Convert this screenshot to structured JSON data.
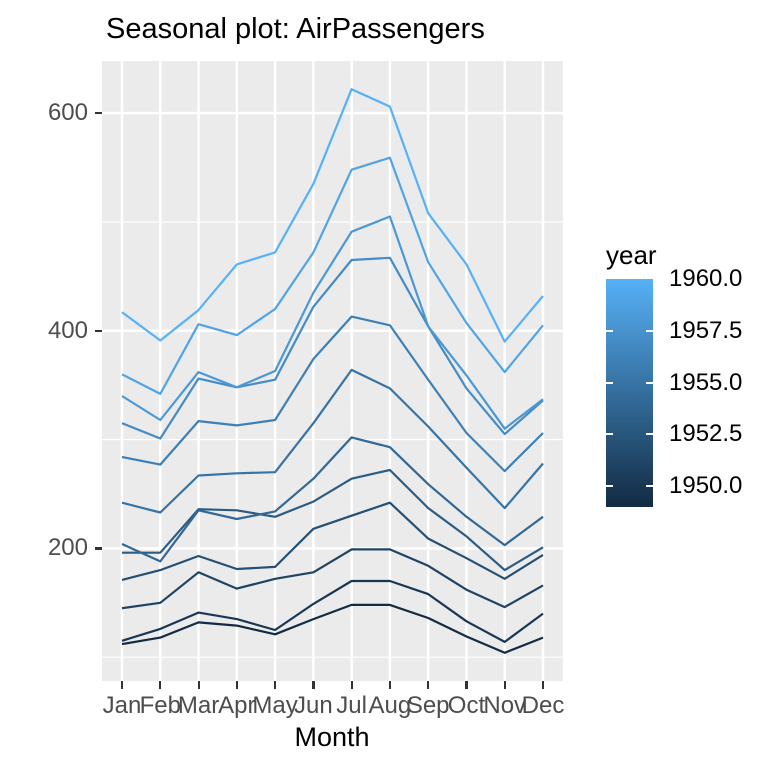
{
  "chart_data": {
    "type": "line",
    "title": "Seasonal plot: AirPassengers",
    "xlabel": "Month",
    "ylabel": "",
    "categories": [
      "Jan",
      "Feb",
      "Mar",
      "Apr",
      "May",
      "Jun",
      "Jul",
      "Aug",
      "Sep",
      "Oct",
      "Nov",
      "Dec"
    ],
    "ylim": [
      78.1,
      647.9
    ],
    "y_ticks": [
      {
        "value": 200,
        "label": "200"
      },
      {
        "value": 400,
        "label": "400"
      },
      {
        "value": 600,
        "label": "600"
      }
    ],
    "y_minor": [
      100,
      300,
      500
    ],
    "grid": "on",
    "legend_position": "right",
    "legend": {
      "title": "year",
      "range": [
        1949,
        1960
      ],
      "low_color": "#132B43",
      "high_color": "#56B1F7",
      "labels": [
        {
          "text": "1960.0",
          "value": 1960.0
        },
        {
          "text": "1957.5",
          "value": 1957.5
        },
        {
          "text": "1955.0",
          "value": 1955.0
        },
        {
          "text": "1952.5",
          "value": 1952.5
        },
        {
          "text": "1950.0",
          "value": 1950.0
        }
      ],
      "tick_values": [
        1957.5,
        1955.0,
        1952.5,
        1950.0
      ]
    },
    "series": [
      {
        "name": "1949",
        "year": 1949,
        "color": "#132B43",
        "values": [
          112,
          118,
          132,
          129,
          121,
          135,
          148,
          148,
          136,
          119,
          104,
          118
        ]
      },
      {
        "name": "1950",
        "year": 1950,
        "color": "#193753",
        "values": [
          115,
          126,
          141,
          135,
          125,
          149,
          170,
          170,
          158,
          133,
          114,
          140
        ]
      },
      {
        "name": "1951",
        "year": 1951,
        "color": "#1F4364",
        "values": [
          145,
          150,
          178,
          163,
          172,
          178,
          199,
          199,
          184,
          162,
          146,
          166
        ]
      },
      {
        "name": "1952",
        "year": 1952,
        "color": "#255074",
        "values": [
          171,
          180,
          193,
          181,
          183,
          218,
          230,
          242,
          209,
          191,
          172,
          194
        ]
      },
      {
        "name": "1953",
        "year": 1953,
        "color": "#2B5C84",
        "values": [
          196,
          196,
          236,
          235,
          229,
          243,
          264,
          272,
          237,
          211,
          180,
          201
        ]
      },
      {
        "name": "1954",
        "year": 1954,
        "color": "#316895",
        "values": [
          204,
          188,
          235,
          227,
          234,
          264,
          302,
          293,
          259,
          229,
          203,
          229
        ]
      },
      {
        "name": "1955",
        "year": 1955,
        "color": "#3774A5",
        "values": [
          242,
          233,
          267,
          269,
          270,
          315,
          364,
          347,
          312,
          274,
          237,
          278
        ]
      },
      {
        "name": "1956",
        "year": 1956,
        "color": "#3E80B5",
        "values": [
          284,
          277,
          317,
          313,
          318,
          374,
          413,
          405,
          355,
          306,
          271,
          306
        ]
      },
      {
        "name": "1957",
        "year": 1957,
        "color": "#448CC6",
        "values": [
          315,
          301,
          356,
          348,
          355,
          422,
          465,
          467,
          404,
          347,
          305,
          336
        ]
      },
      {
        "name": "1958",
        "year": 1958,
        "color": "#4A98D6",
        "values": [
          340,
          318,
          362,
          348,
          363,
          435,
          491,
          505,
          404,
          359,
          310,
          337
        ]
      },
      {
        "name": "1959",
        "year": 1959,
        "color": "#50A4E6",
        "values": [
          360,
          342,
          406,
          396,
          420,
          472,
          548,
          559,
          463,
          407,
          362,
          405
        ]
      },
      {
        "name": "1960",
        "year": 1960,
        "color": "#56B1F7",
        "values": [
          417,
          391,
          419,
          461,
          472,
          535,
          622,
          606,
          508,
          461,
          390,
          432
        ]
      }
    ],
    "colors": {
      "panel_background": "#EBEBEB",
      "grid": "#FFFFFF",
      "axis_text": "#4D4D4D",
      "axis_tick": "#333333",
      "title_text": "#000000"
    }
  }
}
